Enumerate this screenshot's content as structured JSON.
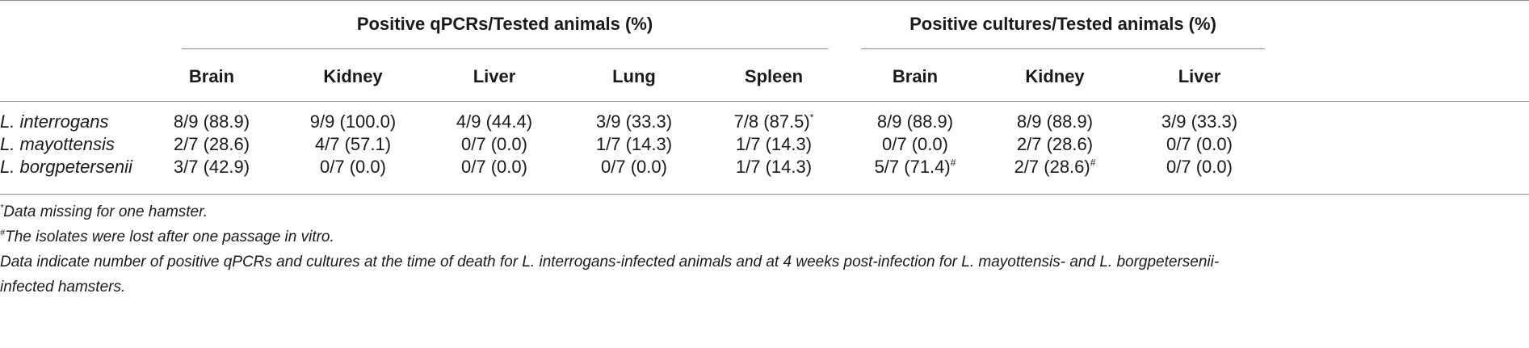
{
  "table": {
    "group_headers": {
      "qpcr": "Positive qPCRs/Tested animals (%)",
      "cultures": "Positive cultures/Tested animals (%)"
    },
    "columns": [
      "Brain",
      "Kidney",
      "Liver",
      "Lung",
      "Spleen",
      "Brain",
      "Kidney",
      "Liver"
    ],
    "rows": [
      {
        "species": "L. interrogans",
        "cells": [
          {
            "value": "8/9 (88.9)",
            "mark": ""
          },
          {
            "value": "9/9 (100.0)",
            "mark": ""
          },
          {
            "value": "4/9 (44.4)",
            "mark": ""
          },
          {
            "value": "3/9 (33.3)",
            "mark": ""
          },
          {
            "value": "7/8 (87.5)",
            "mark": "*"
          },
          {
            "value": "8/9 (88.9)",
            "mark": ""
          },
          {
            "value": "8/9 (88.9)",
            "mark": ""
          },
          {
            "value": "3/9 (33.3)",
            "mark": ""
          }
        ]
      },
      {
        "species": "L. mayottensis",
        "cells": [
          {
            "value": "2/7 (28.6)",
            "mark": ""
          },
          {
            "value": "4/7 (57.1)",
            "mark": ""
          },
          {
            "value": "0/7 (0.0)",
            "mark": ""
          },
          {
            "value": "1/7 (14.3)",
            "mark": ""
          },
          {
            "value": "1/7 (14.3)",
            "mark": ""
          },
          {
            "value": "0/7 (0.0)",
            "mark": ""
          },
          {
            "value": "2/7 (28.6)",
            "mark": ""
          },
          {
            "value": "0/7 (0.0)",
            "mark": ""
          }
        ]
      },
      {
        "species": "L. borgpetersenii",
        "cells": [
          {
            "value": "3/7 (42.9)",
            "mark": ""
          },
          {
            "value": "0/7 (0.0)",
            "mark": ""
          },
          {
            "value": "0/7 (0.0)",
            "mark": ""
          },
          {
            "value": "0/7 (0.0)",
            "mark": ""
          },
          {
            "value": "1/7 (14.3)",
            "mark": ""
          },
          {
            "value": "5/7 (71.4)",
            "mark": "#"
          },
          {
            "value": "2/7 (28.6)",
            "mark": "#"
          },
          {
            "value": "0/7 (0.0)",
            "mark": ""
          }
        ]
      }
    ]
  },
  "footnotes": [
    {
      "mark": "*",
      "text": "Data missing for one hamster."
    },
    {
      "mark": "#",
      "text": "The isolates were lost after one passage in vitro."
    },
    {
      "mark": "",
      "text": "Data indicate number of positive qPCRs and cultures at the time of death for L. interrogans-infected animals and at 4 weeks post-infection for L. mayottensis- and L. borgpetersenii-"
    },
    {
      "mark": "",
      "text": "infected hamsters."
    }
  ]
}
